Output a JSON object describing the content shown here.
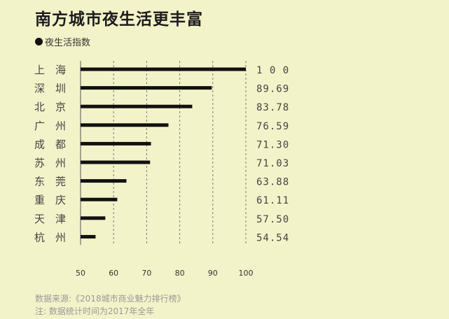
{
  "title": "南方城市夜生活更丰富",
  "legend_label": "夜生活指数",
  "footer": {
    "source": "数据来源:《2018城市商业魅力排行榜》",
    "note": "注: 数据统计时间为2017年全年"
  },
  "chart_data": {
    "type": "bar",
    "orientation": "horizontal",
    "categories": [
      "上　海",
      "深　圳",
      "北　京",
      "广　州",
      "成　都",
      "苏　州",
      "东　莞",
      "重　庆",
      "天　津",
      "杭　州"
    ],
    "value_labels": [
      "1 0 0",
      "89.69",
      "83.78",
      "76.59",
      "71.30",
      "71.03",
      "63.88",
      "61.11",
      "57.50",
      "54.54"
    ],
    "values": [
      100,
      89.69,
      83.78,
      76.59,
      71.3,
      71.03,
      63.88,
      61.11,
      57.5,
      54.54
    ],
    "xlim": [
      50,
      100
    ],
    "xticks": [
      "50",
      "60",
      "70",
      "80",
      "90",
      "100"
    ],
    "grid": true,
    "colors": {
      "bar": "#111111",
      "grid": "#7a7a7a",
      "label": "#444444"
    }
  }
}
